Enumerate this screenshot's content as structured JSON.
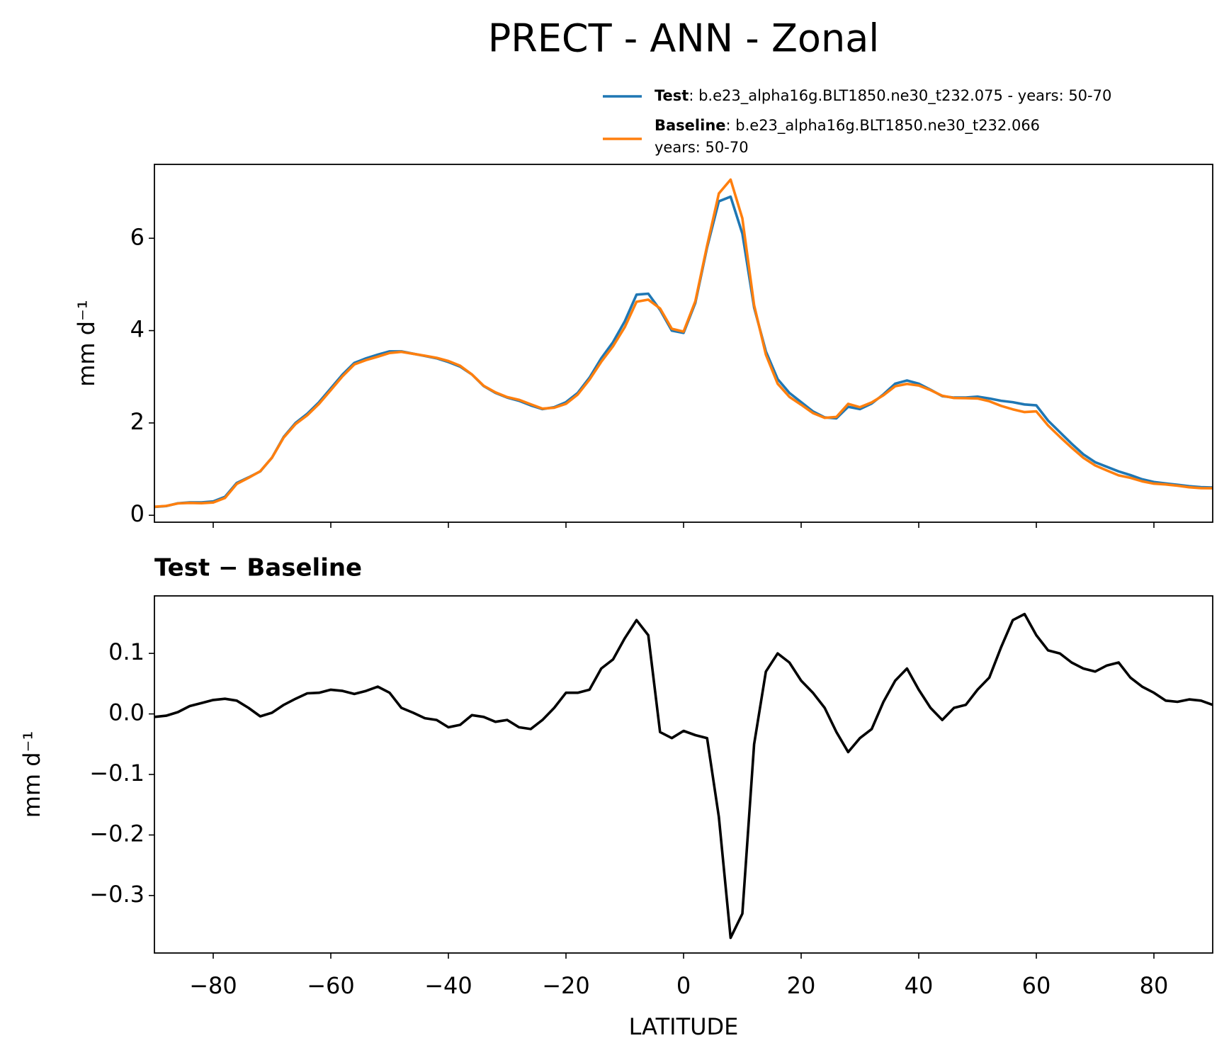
{
  "chart_data": [
    {
      "type": "line",
      "title": "PRECT - ANN - Zonal",
      "ylabel": "mm d⁻¹",
      "x": [
        -90,
        -88,
        -86,
        -84,
        -82,
        -80,
        -78,
        -76,
        -74,
        -72,
        -70,
        -68,
        -66,
        -64,
        -62,
        -60,
        -58,
        -56,
        -54,
        -52,
        -50,
        -48,
        -46,
        -44,
        -42,
        -40,
        -38,
        -36,
        -34,
        -32,
        -30,
        -28,
        -26,
        -24,
        -22,
        -20,
        -18,
        -16,
        -14,
        -12,
        -10,
        -8,
        -6,
        -4,
        -2,
        0,
        2,
        4,
        6,
        8,
        10,
        12,
        14,
        16,
        18,
        20,
        22,
        24,
        26,
        28,
        30,
        32,
        34,
        36,
        38,
        40,
        42,
        44,
        46,
        48,
        50,
        52,
        54,
        56,
        58,
        60,
        62,
        64,
        66,
        68,
        70,
        72,
        74,
        76,
        78,
        80,
        82,
        84,
        86,
        88,
        90
      ],
      "xlim": [
        -90,
        90
      ],
      "ylim": [
        -0.15,
        7.6
      ],
      "yticks": [
        0,
        2,
        4,
        6
      ],
      "series": [
        {
          "name": "Test",
          "label": [
            ": b.e23_alpha16g.BLT1850.ne30_t232.075 - years: 50-70"
          ],
          "color": "#1f77b4",
          "values": [
            0.18,
            0.2,
            0.26,
            0.28,
            0.28,
            0.3,
            0.4,
            0.7,
            0.82,
            0.95,
            1.25,
            1.7,
            2.0,
            2.2,
            2.45,
            2.75,
            3.05,
            3.3,
            3.4,
            3.48,
            3.55,
            3.55,
            3.5,
            3.45,
            3.4,
            3.32,
            3.22,
            3.05,
            2.8,
            2.65,
            2.55,
            2.48,
            2.38,
            2.3,
            2.34,
            2.45,
            2.65,
            2.98,
            3.4,
            3.75,
            4.2,
            4.78,
            4.8,
            4.45,
            4.0,
            3.95,
            4.6,
            5.8,
            6.8,
            6.9,
            6.1,
            4.5,
            3.55,
            2.95,
            2.65,
            2.45,
            2.25,
            2.12,
            2.1,
            2.35,
            2.3,
            2.42,
            2.62,
            2.85,
            2.92,
            2.85,
            2.72,
            2.58,
            2.55,
            2.55,
            2.57,
            2.53,
            2.48,
            2.45,
            2.4,
            2.38,
            2.05,
            1.8,
            1.55,
            1.32,
            1.15,
            1.05,
            0.95,
            0.87,
            0.78,
            0.72,
            0.69,
            0.66,
            0.63,
            0.61,
            0.6
          ]
        },
        {
          "name": "Baseline",
          "label": [
            ": b.e23_alpha16g.BLT1850.ne30_t232.066",
            "years: 50-70"
          ],
          "color": "#ff7f0e",
          "values": [
            0.185,
            0.203,
            0.257,
            0.267,
            0.262,
            0.277,
            0.375,
            0.678,
            0.81,
            0.954,
            1.248,
            1.685,
            1.975,
            2.166,
            2.415,
            2.71,
            3.012,
            3.267,
            3.362,
            3.435,
            3.515,
            3.54,
            3.498,
            3.457,
            3.41,
            3.342,
            3.238,
            3.052,
            2.805,
            2.663,
            2.56,
            2.502,
            2.405,
            2.31,
            2.33,
            2.415,
            2.615,
            2.94,
            3.325,
            3.66,
            4.075,
            4.625,
            4.67,
            4.48,
            4.04,
            3.978,
            4.635,
            5.84,
            6.97,
            7.27,
            6.43,
            4.55,
            3.48,
            2.85,
            2.565,
            2.395,
            2.215,
            2.11,
            2.13,
            2.413,
            2.34,
            2.445,
            2.6,
            2.795,
            2.845,
            2.81,
            2.71,
            2.59,
            2.54,
            2.535,
            2.53,
            2.47,
            2.37,
            2.295,
            2.235,
            2.25,
            1.945,
            1.7,
            1.465,
            1.245,
            1.08,
            0.97,
            0.865,
            0.81,
            0.735,
            0.685,
            0.668,
            0.64,
            0.606,
            0.588,
            0.585
          ]
        }
      ]
    },
    {
      "type": "line",
      "title": "Test − Baseline",
      "ylabel": "mm d⁻¹",
      "xlabel": "LATITUDE",
      "x": [
        -90,
        -88,
        -86,
        -84,
        -82,
        -80,
        -78,
        -76,
        -74,
        -72,
        -70,
        -68,
        -66,
        -64,
        -62,
        -60,
        -58,
        -56,
        -54,
        -52,
        -50,
        -48,
        -46,
        -44,
        -42,
        -40,
        -38,
        -36,
        -34,
        -32,
        -30,
        -28,
        -26,
        -24,
        -22,
        -20,
        -18,
        -16,
        -14,
        -12,
        -10,
        -8,
        -6,
        -4,
        -2,
        0,
        2,
        4,
        6,
        8,
        10,
        12,
        14,
        16,
        18,
        20,
        22,
        24,
        26,
        28,
        30,
        32,
        34,
        36,
        38,
        40,
        42,
        44,
        46,
        48,
        50,
        52,
        54,
        56,
        58,
        60,
        62,
        64,
        66,
        68,
        70,
        72,
        74,
        76,
        78,
        80,
        82,
        84,
        86,
        88,
        90
      ],
      "xlim": [
        -90,
        90
      ],
      "ylim": [
        -0.395,
        0.195
      ],
      "xticks": [
        {
          "value": -80,
          "label": "−80"
        },
        {
          "value": -60,
          "label": "−60"
        },
        {
          "value": -40,
          "label": "−40"
        },
        {
          "value": -20,
          "label": "−20"
        },
        0,
        20,
        40,
        60,
        80
      ],
      "yticks": [
        0.1,
        {
          "value": 0,
          "label": "0.0"
        },
        {
          "value": -0.1,
          "label": "−0.1"
        },
        {
          "value": -0.2,
          "label": "−0.2"
        },
        {
          "value": -0.3,
          "label": "−0.3"
        }
      ],
      "series": [
        {
          "color": "#000000",
          "values": [
            -0.005,
            -0.003,
            0.003,
            0.013,
            0.018,
            0.023,
            0.025,
            0.022,
            0.01,
            -0.004,
            0.002,
            0.015,
            0.025,
            0.034,
            0.035,
            0.04,
            0.038,
            0.033,
            0.038,
            0.045,
            0.035,
            0.01,
            0.002,
            -0.007,
            -0.01,
            -0.022,
            -0.018,
            -0.002,
            -0.005,
            -0.013,
            -0.01,
            -0.022,
            -0.025,
            -0.01,
            0.01,
            0.035,
            0.035,
            0.04,
            0.075,
            0.09,
            0.125,
            0.155,
            0.13,
            -0.03,
            -0.04,
            -0.028,
            -0.035,
            -0.04,
            -0.17,
            -0.37,
            -0.33,
            -0.05,
            0.07,
            0.1,
            0.085,
            0.055,
            0.035,
            0.01,
            -0.03,
            -0.063,
            -0.04,
            -0.025,
            0.02,
            0.055,
            0.075,
            0.04,
            0.01,
            -0.01,
            0.01,
            0.015,
            0.04,
            0.06,
            0.11,
            0.155,
            0.165,
            0.13,
            0.105,
            0.1,
            0.085,
            0.075,
            0.07,
            0.08,
            0.085,
            0.06,
            0.045,
            0.035,
            0.022,
            0.02,
            0.024,
            0.022,
            0.015
          ]
        }
      ]
    }
  ]
}
